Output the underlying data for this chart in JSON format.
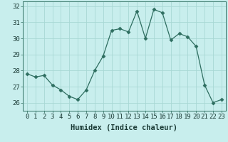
{
  "x": [
    0,
    1,
    2,
    3,
    4,
    5,
    6,
    7,
    8,
    9,
    10,
    11,
    12,
    13,
    14,
    15,
    16,
    17,
    18,
    19,
    20,
    21,
    22,
    23
  ],
  "y": [
    27.8,
    27.6,
    27.7,
    27.1,
    26.8,
    26.4,
    26.2,
    26.8,
    28.0,
    28.9,
    30.5,
    30.6,
    30.4,
    31.7,
    30.0,
    31.8,
    31.6,
    29.9,
    30.3,
    30.1,
    29.5,
    27.1,
    26.0,
    26.2
  ],
  "line_color": "#2e6e60",
  "marker": "D",
  "marker_size": 2.5,
  "bg_color": "#c8eeed",
  "grid_color": "#a8d8d4",
  "xlabel": "Humidex (Indice chaleur)",
  "xlim": [
    -0.5,
    23.5
  ],
  "ylim": [
    25.5,
    32.3
  ],
  "yticks": [
    26,
    27,
    28,
    29,
    30,
    31,
    32
  ],
  "xticks": [
    0,
    1,
    2,
    3,
    4,
    5,
    6,
    7,
    8,
    9,
    10,
    11,
    12,
    13,
    14,
    15,
    16,
    17,
    18,
    19,
    20,
    21,
    22,
    23
  ],
  "tick_label_fontsize": 6.5,
  "xlabel_fontsize": 7.5
}
